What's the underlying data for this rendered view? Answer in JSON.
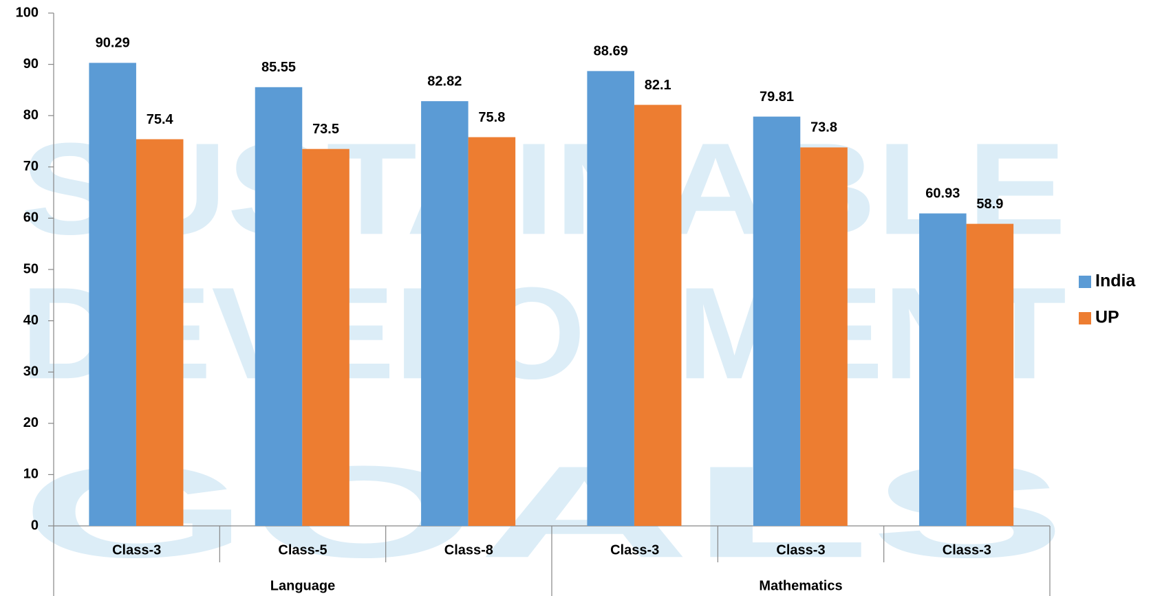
{
  "chart_data": {
    "type": "bar",
    "watermark": [
      "SUSTAINABLE",
      "DEVELOPMENT",
      "GOALS"
    ],
    "categories": [
      "Class-3",
      "Class-5",
      "Class-8",
      "Class-3",
      "Class-3",
      "Class-3"
    ],
    "groups": [
      "Language",
      "Language",
      "Language",
      "Mathematics",
      "Mathematics",
      "Mathematics"
    ],
    "series": [
      {
        "name": "India",
        "color": "#5b9bd5",
        "values": [
          90.29,
          85.55,
          82.82,
          88.69,
          79.81,
          60.93
        ]
      },
      {
        "name": "UP",
        "color": "#ed7d31",
        "values": [
          75.4,
          73.5,
          75.8,
          82.1,
          73.8,
          58.9
        ]
      }
    ],
    "ylim": [
      0,
      100
    ],
    "yticks": [
      0,
      10,
      20,
      30,
      40,
      50,
      60,
      70,
      80,
      90,
      100
    ],
    "legend": "right"
  }
}
